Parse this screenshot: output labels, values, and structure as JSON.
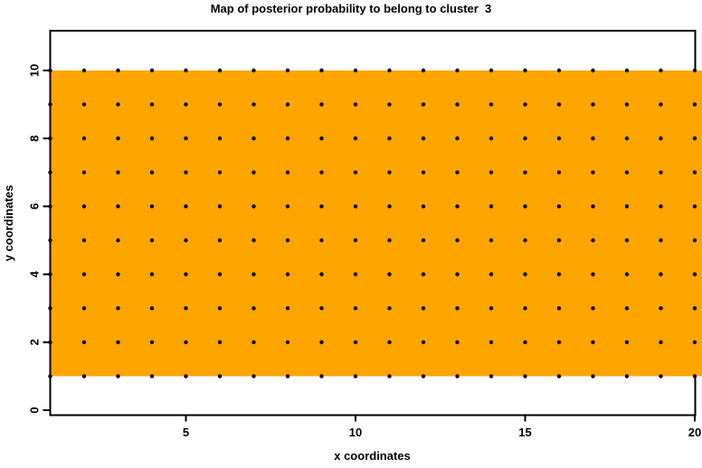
{
  "chart_data": {
    "type": "scatter",
    "title": "Map of posterior probability to belong to cluster  3",
    "xlabel": "x coordinates",
    "ylabel": "y coordinates",
    "x_ticks": [
      5,
      10,
      15,
      20
    ],
    "y_ticks": [
      0,
      2,
      4,
      6,
      8,
      10
    ],
    "xlim": [
      1,
      20
    ],
    "ylim": [
      -0.2,
      11.2
    ],
    "grid_x": [
      1,
      2,
      3,
      4,
      5,
      6,
      7,
      8,
      9,
      10,
      11,
      12,
      13,
      14,
      15,
      16,
      17,
      18,
      19,
      20
    ],
    "grid_y": [
      1,
      2,
      3,
      4,
      5,
      6,
      7,
      8,
      9,
      10
    ],
    "points_are_full_grid": true,
    "n_points": 200,
    "point_color": "#000000",
    "point_shape": "filled-circle",
    "cluster_region": {
      "x_from": 1,
      "x_to": 20,
      "y_from": 1,
      "y_to": 10,
      "fill": "#FFA500"
    },
    "frame_color": "#000000",
    "background": "#FFFFFF",
    "grid_lines": "off",
    "legend": "none"
  }
}
